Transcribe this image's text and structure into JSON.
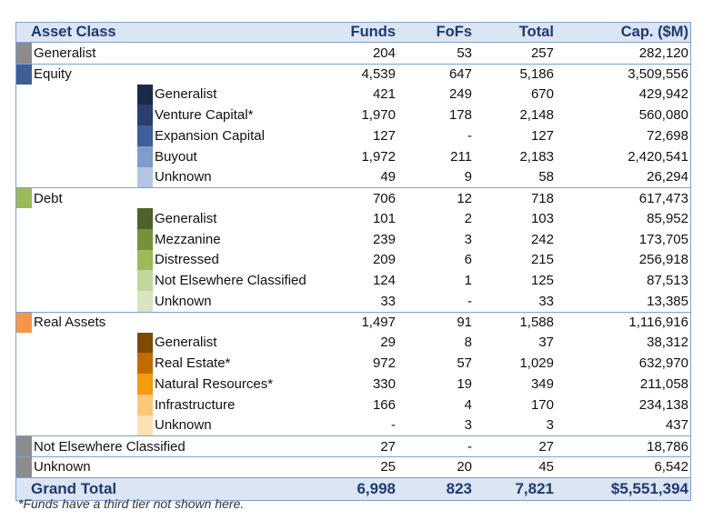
{
  "header": {
    "asset_class": "Asset Class",
    "funds": "Funds",
    "fofs": "FoFs",
    "total": "Total",
    "cap": "Cap. ($M)"
  },
  "rows": [
    {
      "tier": 1,
      "label": "Generalist",
      "funds": "204",
      "fofs": "53",
      "total": "257",
      "cap": "282,120",
      "color": "#8c8c8c"
    },
    {
      "tier": 1,
      "label": "Equity",
      "funds": "4,539",
      "fofs": "647",
      "total": "5,186",
      "cap": "3,509,556",
      "color": "#3d5f96"
    },
    {
      "tier": 2,
      "label": "Generalist",
      "funds": "421",
      "fofs": "249",
      "total": "670",
      "cap": "429,942",
      "color": "#1a2a4a"
    },
    {
      "tier": 2,
      "label": "Venture Capital*",
      "funds": "1,970",
      "fofs": "178",
      "total": "2,148",
      "cap": "560,080",
      "color": "#2a3f6e"
    },
    {
      "tier": 2,
      "label": "Expansion Capital",
      "funds": "127",
      "fofs": "-",
      "total": "127",
      "cap": "72,698",
      "color": "#3e5f9a"
    },
    {
      "tier": 2,
      "label": "Buyout",
      "funds": "1,972",
      "fofs": "211",
      "total": "2,183",
      "cap": "2,420,541",
      "color": "#7f9ccb"
    },
    {
      "tier": 2,
      "label": "Unknown",
      "funds": "49",
      "fofs": "9",
      "total": "58",
      "cap": "26,294",
      "color": "#b3c5e2"
    },
    {
      "tier": 1,
      "label": "Debt",
      "funds": "706",
      "fofs": "12",
      "total": "718",
      "cap": "617,473",
      "color": "#9bbb59"
    },
    {
      "tier": 2,
      "label": "Generalist",
      "funds": "101",
      "fofs": "2",
      "total": "103",
      "cap": "85,952",
      "color": "#4f6228"
    },
    {
      "tier": 2,
      "label": "Mezzanine",
      "funds": "239",
      "fofs": "3",
      "total": "242",
      "cap": "173,705",
      "color": "#76923c"
    },
    {
      "tier": 2,
      "label": "Distressed",
      "funds": "209",
      "fofs": "6",
      "total": "215",
      "cap": "256,918",
      "color": "#9bbb59"
    },
    {
      "tier": 2,
      "label": "Not Elsewhere Classified",
      "funds": "124",
      "fofs": "1",
      "total": "125",
      "cap": "87,513",
      "color": "#c3d69b"
    },
    {
      "tier": 2,
      "label": "Unknown",
      "funds": "33",
      "fofs": "-",
      "total": "33",
      "cap": "13,385",
      "color": "#d7e4bd"
    },
    {
      "tier": 1,
      "label": "Real Assets",
      "funds": "1,497",
      "fofs": "91",
      "total": "1,588",
      "cap": "1,116,916",
      "color": "#f79646"
    },
    {
      "tier": 2,
      "label": "Generalist",
      "funds": "29",
      "fofs": "8",
      "total": "37",
      "cap": "38,312",
      "color": "#7f4b00"
    },
    {
      "tier": 2,
      "label": "Real Estate*",
      "funds": "972",
      "fofs": "57",
      "total": "1,029",
      "cap": "632,970",
      "color": "#c26b00"
    },
    {
      "tier": 2,
      "label": "Natural Resources*",
      "funds": "330",
      "fofs": "19",
      "total": "349",
      "cap": "211,058",
      "color": "#f49b0e"
    },
    {
      "tier": 2,
      "label": "Infrastructure",
      "funds": "166",
      "fofs": "4",
      "total": "170",
      "cap": "234,138",
      "color": "#fbc77a"
    },
    {
      "tier": 2,
      "label": "Unknown",
      "funds": "-",
      "fofs": "3",
      "total": "3",
      "cap": "437",
      "color": "#fde0b4"
    },
    {
      "tier": 1,
      "label": "Not Elsewhere Classified",
      "funds": "27",
      "fofs": "-",
      "total": "27",
      "cap": "18,786",
      "color": "#8c8c8c"
    },
    {
      "tier": 1,
      "label": "Unknown",
      "funds": "25",
      "fofs": "20",
      "total": "45",
      "cap": "6,542",
      "color": "#8c8c8c"
    }
  ],
  "grand_total": {
    "label": "Grand Total",
    "funds": "6,998",
    "fofs": "823",
    "total": "7,821",
    "cap": "$5,551,394"
  },
  "footnote": "*Funds have a third tier not shown here."
}
